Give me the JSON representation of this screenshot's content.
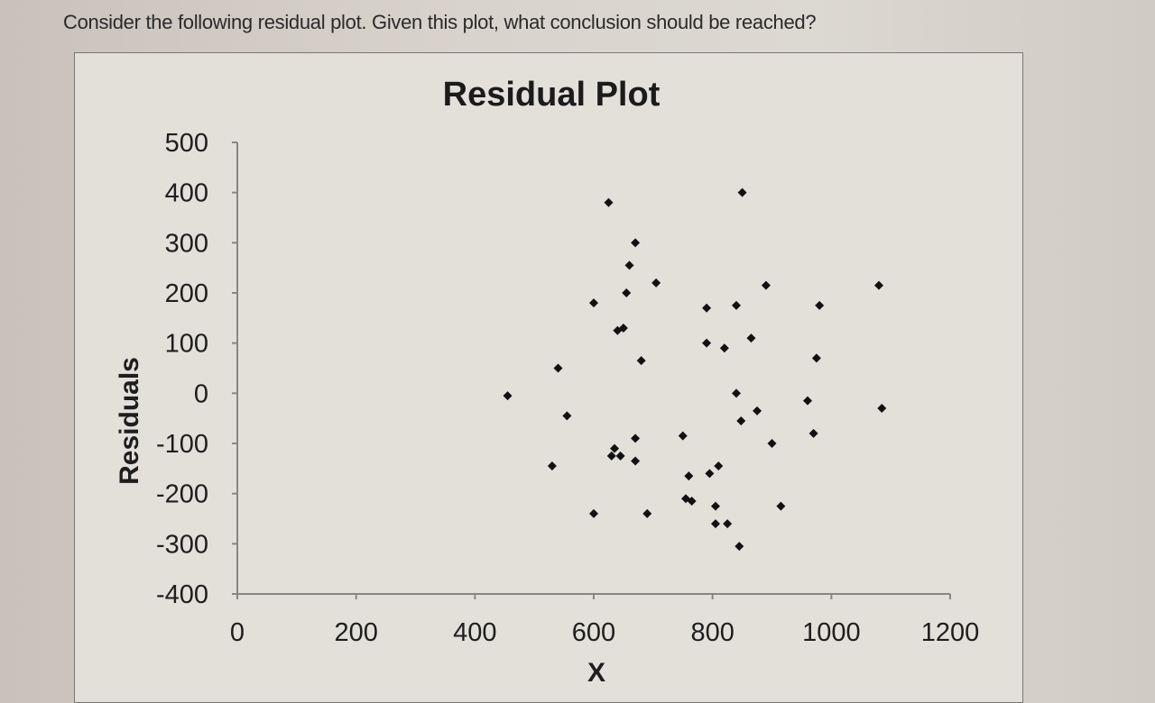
{
  "question": "Consider the following residual plot. Given this plot, what conclusion should be reached?",
  "chart_data": {
    "type": "scatter",
    "title": "Residual Plot",
    "xlabel": "X",
    "ylabel": "Residuals",
    "xlim": [
      0,
      1200
    ],
    "ylim": [
      -400,
      500
    ],
    "xticks": [
      "0",
      "200",
      "400",
      "600",
      "800",
      "1000",
      "1200"
    ],
    "yticks": [
      "500",
      "400",
      "300",
      "200",
      "100",
      "0",
      "-100",
      "-200",
      "-300",
      "-400"
    ],
    "grid": false,
    "legend": "none",
    "marker_color": "#111111",
    "points": [
      [
        455,
        -5
      ],
      [
        530,
        -145
      ],
      [
        540,
        50
      ],
      [
        555,
        -45
      ],
      [
        600,
        180
      ],
      [
        600,
        -240
      ],
      [
        625,
        380
      ],
      [
        630,
        -125
      ],
      [
        635,
        -110
      ],
      [
        640,
        125
      ],
      [
        645,
        -125
      ],
      [
        650,
        130
      ],
      [
        655,
        200
      ],
      [
        660,
        255
      ],
      [
        670,
        300
      ],
      [
        670,
        -90
      ],
      [
        670,
        -135
      ],
      [
        680,
        65
      ],
      [
        690,
        -240
      ],
      [
        705,
        220
      ],
      [
        750,
        -85
      ],
      [
        755,
        -210
      ],
      [
        760,
        -165
      ],
      [
        765,
        -215
      ],
      [
        790,
        170
      ],
      [
        790,
        100
      ],
      [
        795,
        -160
      ],
      [
        805,
        -225
      ],
      [
        805,
        -260
      ],
      [
        810,
        -145
      ],
      [
        820,
        90
      ],
      [
        825,
        -260
      ],
      [
        840,
        175
      ],
      [
        840,
        0
      ],
      [
        845,
        -305
      ],
      [
        848,
        -55
      ],
      [
        850,
        400
      ],
      [
        865,
        110
      ],
      [
        875,
        -35
      ],
      [
        890,
        215
      ],
      [
        900,
        -100
      ],
      [
        915,
        -225
      ],
      [
        960,
        -15
      ],
      [
        970,
        -80
      ],
      [
        975,
        70
      ],
      [
        980,
        175
      ],
      [
        1080,
        215
      ],
      [
        1085,
        -30
      ]
    ]
  }
}
